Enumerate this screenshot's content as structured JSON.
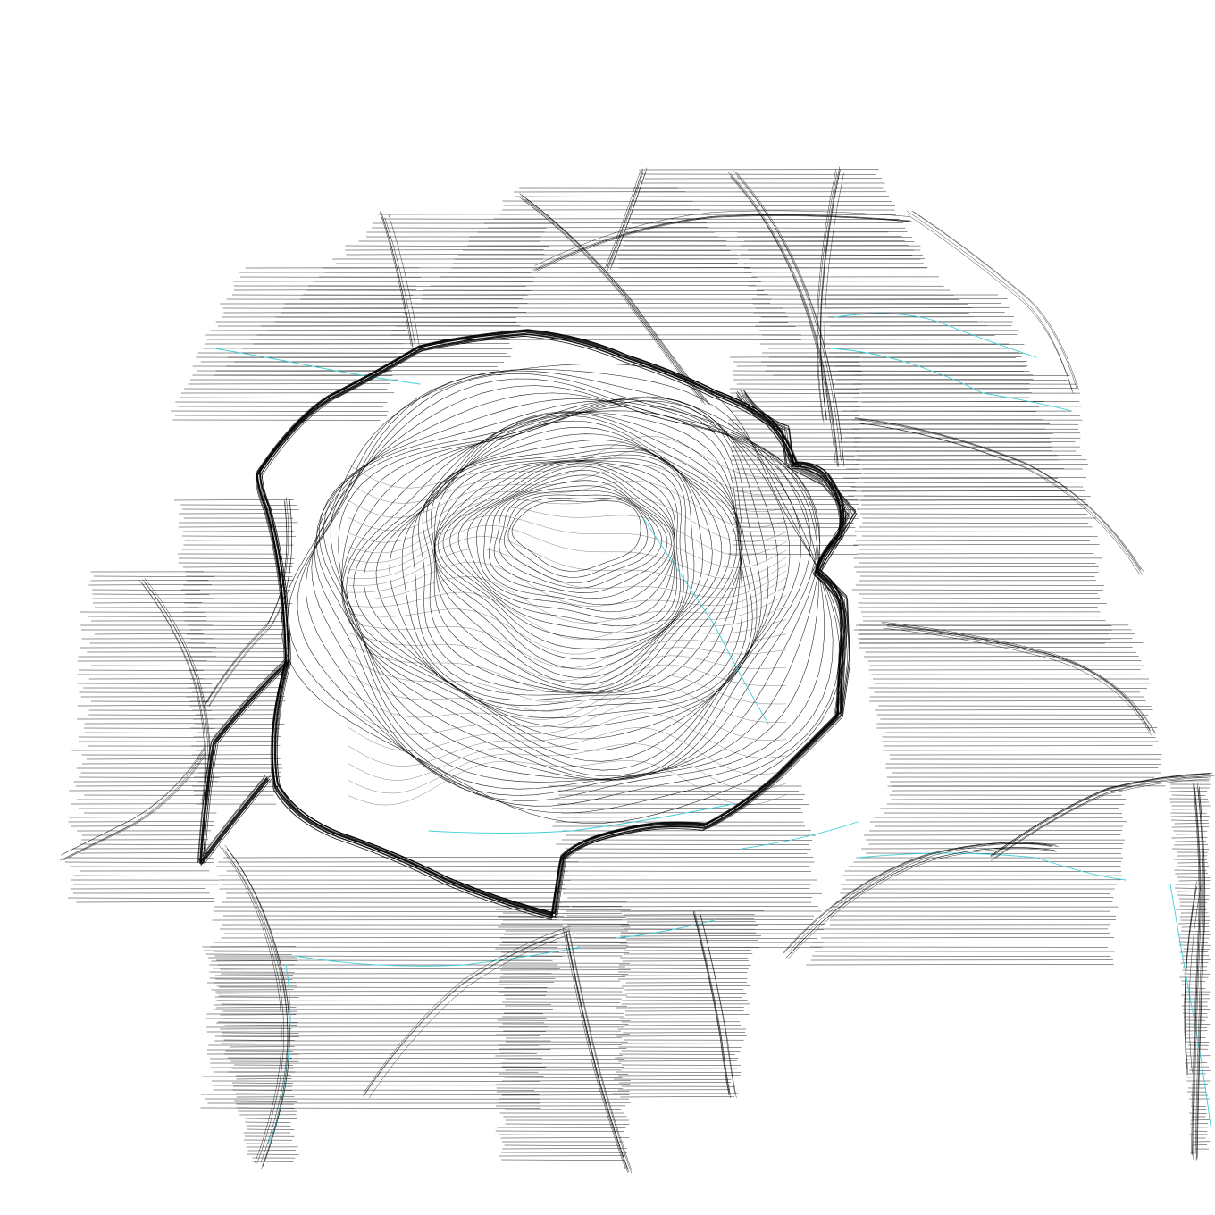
{
  "artwork": {
    "kind": "generative pen-plot line drawing",
    "background_color": "#ffffff",
    "ink_color": "#000000",
    "accent_ink_color": "#3fd0d8",
    "visible_text": []
  }
}
